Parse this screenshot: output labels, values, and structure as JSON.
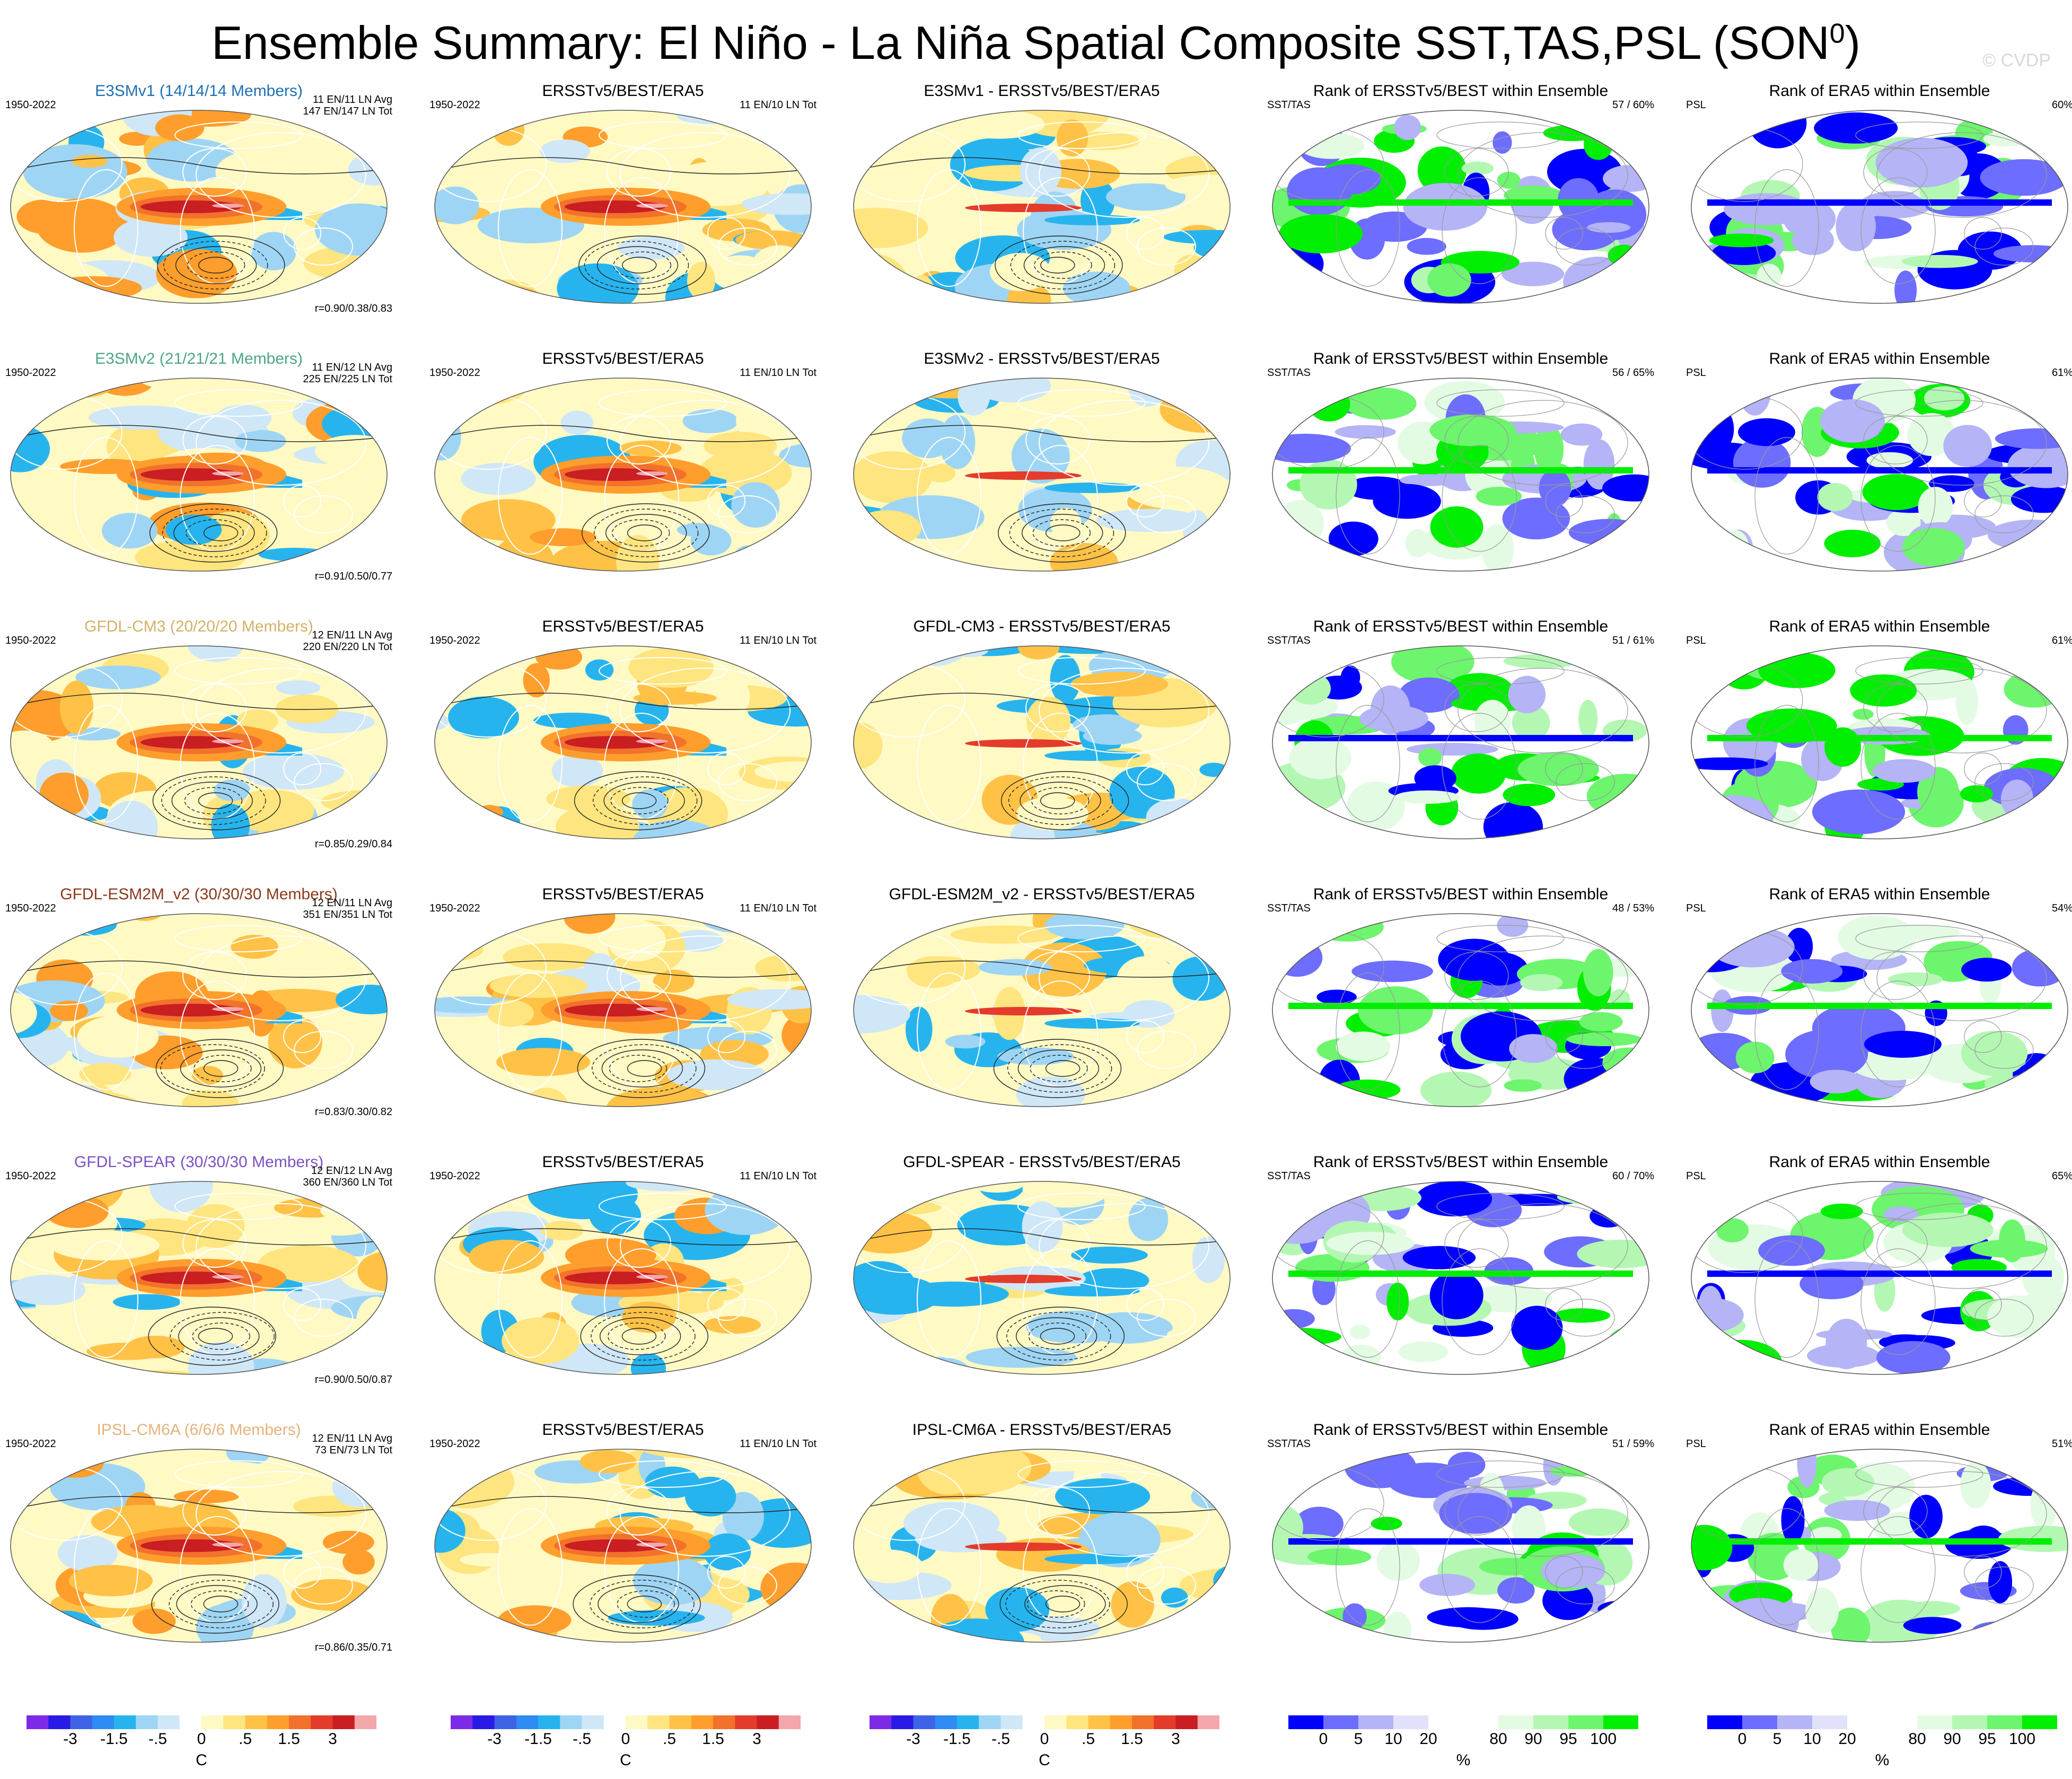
{
  "title": "Ensemble Summary: El Niño - La Niña Spatial Composite SST,TAS,PSL (SON",
  "title_sup": "0",
  "title_close": ")",
  "watermark": "© CVDP",
  "period": "1950-2022",
  "obs_name": "ERSSTv5/BEST/ERA5",
  "obs_counts": "11 EN/10 LN Tot",
  "sst_tag": "SST/TAS",
  "psl_tag": "PSL",
  "rank_sst_title": "Rank of ERSSTv5/BEST within Ensemble",
  "rank_psl_title": "Rank of ERA5 within Ensemble",
  "colors": {
    "diverging": [
      "#7d2ae8",
      "#2a1ae6",
      "#3f63e6",
      "#2e8cf2",
      "#27b4ee",
      "#9fd5f4",
      "#cfe7f7",
      "#ffffff",
      "#fff9c4",
      "#ffe57f",
      "#ffc247",
      "#ff9e2c",
      "#f2712b",
      "#e43b2b",
      "#c91e22",
      "#f3a7ab"
    ],
    "rank": [
      "#0000ff",
      "#6d6dff",
      "#b4b4f6",
      "#e1e1fb",
      "#ffffff",
      "#e3fbe3",
      "#b3f7b3",
      "#6df56d",
      "#00ee00"
    ]
  },
  "models": [
    {
      "name": "E3SMv1 (14/14/14 Members)",
      "short": "E3SMv1",
      "color": "#1f6fb4",
      "avg": "11 EN/11 LN Avg",
      "tot": "147 EN/147 LN Tot",
      "r": "r=0.90/0.38/0.83",
      "sst_pct": "57 /  60%",
      "psl_pct": "60%"
    },
    {
      "name": "E3SMv2 (21/21/21 Members)",
      "short": "E3SMv2",
      "color": "#4ea58a",
      "avg": "11 EN/12 LN Avg",
      "tot": "225 EN/225 LN Tot",
      "r": "r=0.91/0.50/0.77",
      "sst_pct": "56 /  65%",
      "psl_pct": "61%"
    },
    {
      "name": "GFDL-CM3 (20/20/20 Members)",
      "short": "GFDL-CM3",
      "color": "#d2b266",
      "avg": "12 EN/11 LN Avg",
      "tot": "220 EN/220 LN Tot",
      "r": "r=0.85/0.29/0.84",
      "sst_pct": "51 /  61%",
      "psl_pct": "61%"
    },
    {
      "name": "GFDL-ESM2M_v2 (30/30/30 Members)",
      "short": "GFDL-ESM2M_v2",
      "color": "#8b3a1a",
      "avg": "12 EN/11 LN Avg",
      "tot": "351 EN/351 LN Tot",
      "r": "r=0.83/0.30/0.82",
      "sst_pct": "48 /  53%",
      "psl_pct": "54%"
    },
    {
      "name": "GFDL-SPEAR (30/30/30 Members)",
      "short": "GFDL-SPEAR",
      "color": "#7a52c4",
      "avg": "12 EN/12 LN Avg",
      "tot": "360 EN/360 LN Tot",
      "r": "r=0.90/0.50/0.87",
      "sst_pct": "60 /  70%",
      "psl_pct": "65%"
    },
    {
      "name": "IPSL-CM6A (6/6/6 Members)",
      "short": "IPSL-CM6A",
      "color": "#e7b27c",
      "avg": "12 EN/11 LN Avg",
      "tot": "73 EN/73 LN Tot",
      "r": "r=0.86/0.35/0.71",
      "sst_pct": "51 /  59%",
      "psl_pct": "51%"
    }
  ],
  "diff_suffix": " - ERSSTv5/BEST/ERA5",
  "chart_data": {
    "type": "heatmap",
    "title": "Ensemble Summary: El Niño - La Niña Spatial Composite SST,TAS,PSL (SON0)",
    "season": "SON",
    "period": "1950-2022",
    "observations": "ERSSTv5/BEST/ERA5",
    "panels_per_row": [
      "model composite",
      "observed composite",
      "model minus observations",
      "rank of ERSSTv5/BEST within ensemble (SST/TAS)",
      "rank of ERA5 within ensemble (PSL)"
    ],
    "models": [
      "E3SMv1",
      "E3SMv2",
      "GFDL-CM3",
      "GFDL-ESM2M_v2",
      "GFDL-SPEAR",
      "IPSL-CM6A"
    ],
    "members": [
      14,
      21,
      20,
      30,
      30,
      6
    ],
    "pattern_correlations": [
      [
        0.9,
        0.38,
        0.83
      ],
      [
        0.91,
        0.5,
        0.77
      ],
      [
        0.85,
        0.29,
        0.84
      ],
      [
        0.83,
        0.3,
        0.82
      ],
      [
        0.9,
        0.5,
        0.87
      ],
      [
        0.86,
        0.35,
        0.71
      ]
    ],
    "rank_sst_percent_pairs": [
      [
        57,
        60
      ],
      [
        56,
        65
      ],
      [
        51,
        61
      ],
      [
        48,
        53
      ],
      [
        60,
        70
      ],
      [
        51,
        59
      ]
    ],
    "rank_psl_percent": [
      60,
      61,
      61,
      54,
      65,
      51
    ],
    "composite_colorbar": {
      "unit": "C",
      "tick_labels": [
        "-3",
        "-1.5",
        "-.5",
        "0",
        ".5",
        "1.5",
        "3"
      ]
    },
    "rank_colorbar": {
      "unit": "%",
      "tick_labels": [
        "0",
        "5",
        "10",
        "20",
        "80",
        "90",
        "95",
        "100"
      ]
    }
  }
}
